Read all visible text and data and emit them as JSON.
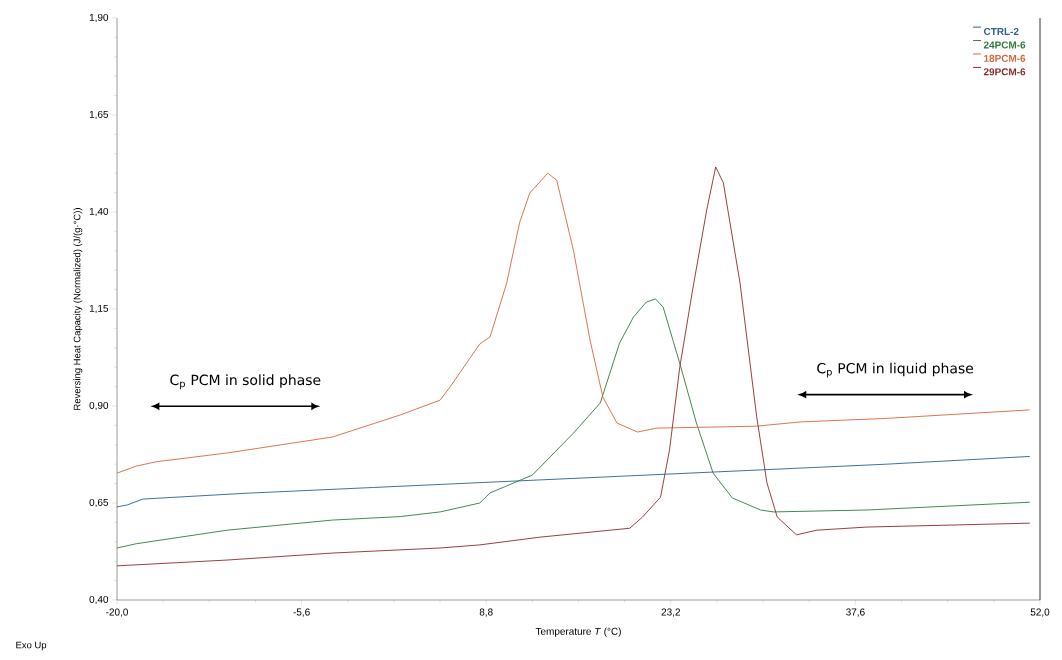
{
  "chart_data": {
    "type": "line",
    "xlabel": "Temperature *T* (°C)",
    "ylabel": "Reversing Heat Capacity (Normalized) (J/(g·°C))",
    "xlim": [
      -20,
      52
    ],
    "ylim": [
      0.4,
      1.9
    ],
    "xticks": [
      {
        "value": -20,
        "label": "-20,0"
      },
      {
        "value": -5.6,
        "label": "-5,6"
      },
      {
        "value": 8.8,
        "label": "8,8"
      },
      {
        "value": 23.2,
        "label": "23,2"
      },
      {
        "value": 37.6,
        "label": "37,6"
      },
      {
        "value": 52,
        "label": "52,0"
      }
    ],
    "yticks": [
      {
        "value": 0.4,
        "label": "0,40"
      },
      {
        "value": 0.65,
        "label": "0,65"
      },
      {
        "value": 0.9,
        "label": "0,90"
      },
      {
        "value": 1.15,
        "label": "1,15"
      },
      {
        "value": 1.4,
        "label": "1,40"
      },
      {
        "value": 1.65,
        "label": "1,65"
      },
      {
        "value": 1.9,
        "label": "1,90"
      }
    ],
    "legend": "top right",
    "series": [
      {
        "name": "CTRL-2",
        "color": "#2e5f8a",
        "x": [
          -20,
          -19.2,
          -18,
          -17,
          -10,
          0,
          10,
          20,
          30,
          40,
          51.2
        ],
        "values": [
          0.64,
          0.645,
          0.66,
          0.662,
          0.675,
          0.69,
          0.705,
          0.72,
          0.735,
          0.75,
          0.77
        ]
      },
      {
        "name": "24PCM-6",
        "color": "#2f7a3a",
        "x": [
          -20,
          -18.5,
          -11.4,
          -3.2,
          2.1,
          5.2,
          8.3,
          9.1,
          12.4,
          15.6,
          17.7,
          19.2,
          20.3,
          21.3,
          22.0,
          22.6,
          23.9,
          25.2,
          26.5,
          28.0,
          30.2,
          31.2,
          38.5,
          51.2
        ],
        "values": [
          0.534,
          0.545,
          0.58,
          0.606,
          0.615,
          0.627,
          0.65,
          0.676,
          0.722,
          0.83,
          0.908,
          1.062,
          1.13,
          1.168,
          1.176,
          1.155,
          1.01,
          0.856,
          0.727,
          0.663,
          0.632,
          0.627,
          0.632,
          0.652
        ]
      },
      {
        "name": "18PCM-6",
        "color": "#d9663a",
        "x": [
          -20,
          -18.5,
          -17,
          -11.4,
          -3.2,
          2.1,
          5.2,
          6.0,
          8.3,
          9.1,
          10.4,
          11.4,
          12.2,
          13.6,
          14.3,
          15.6,
          16.9,
          17.9,
          19.0,
          20.6,
          22.1,
          29.9,
          33.3,
          40,
          51.2
        ],
        "values": [
          0.727,
          0.745,
          0.756,
          0.779,
          0.82,
          0.877,
          0.915,
          0.95,
          1.06,
          1.078,
          1.217,
          1.372,
          1.449,
          1.5,
          1.482,
          1.302,
          1.07,
          0.923,
          0.856,
          0.833,
          0.843,
          0.848,
          0.859,
          0.868,
          0.89
        ]
      },
      {
        "name": "29PCM-6",
        "color": "#8b2a2a",
        "x": [
          -20,
          -11.4,
          -3.2,
          5.2,
          8.3,
          13.0,
          20.0,
          21.0,
          22.4,
          23.1,
          23.9,
          24.9,
          26.0,
          26.7,
          27.3,
          28.6,
          29.9,
          30.7,
          31.5,
          33.0,
          34.6,
          38.5,
          51.2
        ],
        "values": [
          0.488,
          0.503,
          0.521,
          0.534,
          0.542,
          0.562,
          0.585,
          0.614,
          0.665,
          0.787,
          1.0,
          1.199,
          1.405,
          1.516,
          1.475,
          1.217,
          0.872,
          0.702,
          0.614,
          0.568,
          0.58,
          0.588,
          0.598
        ]
      }
    ],
    "annotations": [
      "C$_{p}$ PCM in solid phase",
      "C$_{p}$ PCM in liquid phase",
      "Exo Up"
    ]
  }
}
